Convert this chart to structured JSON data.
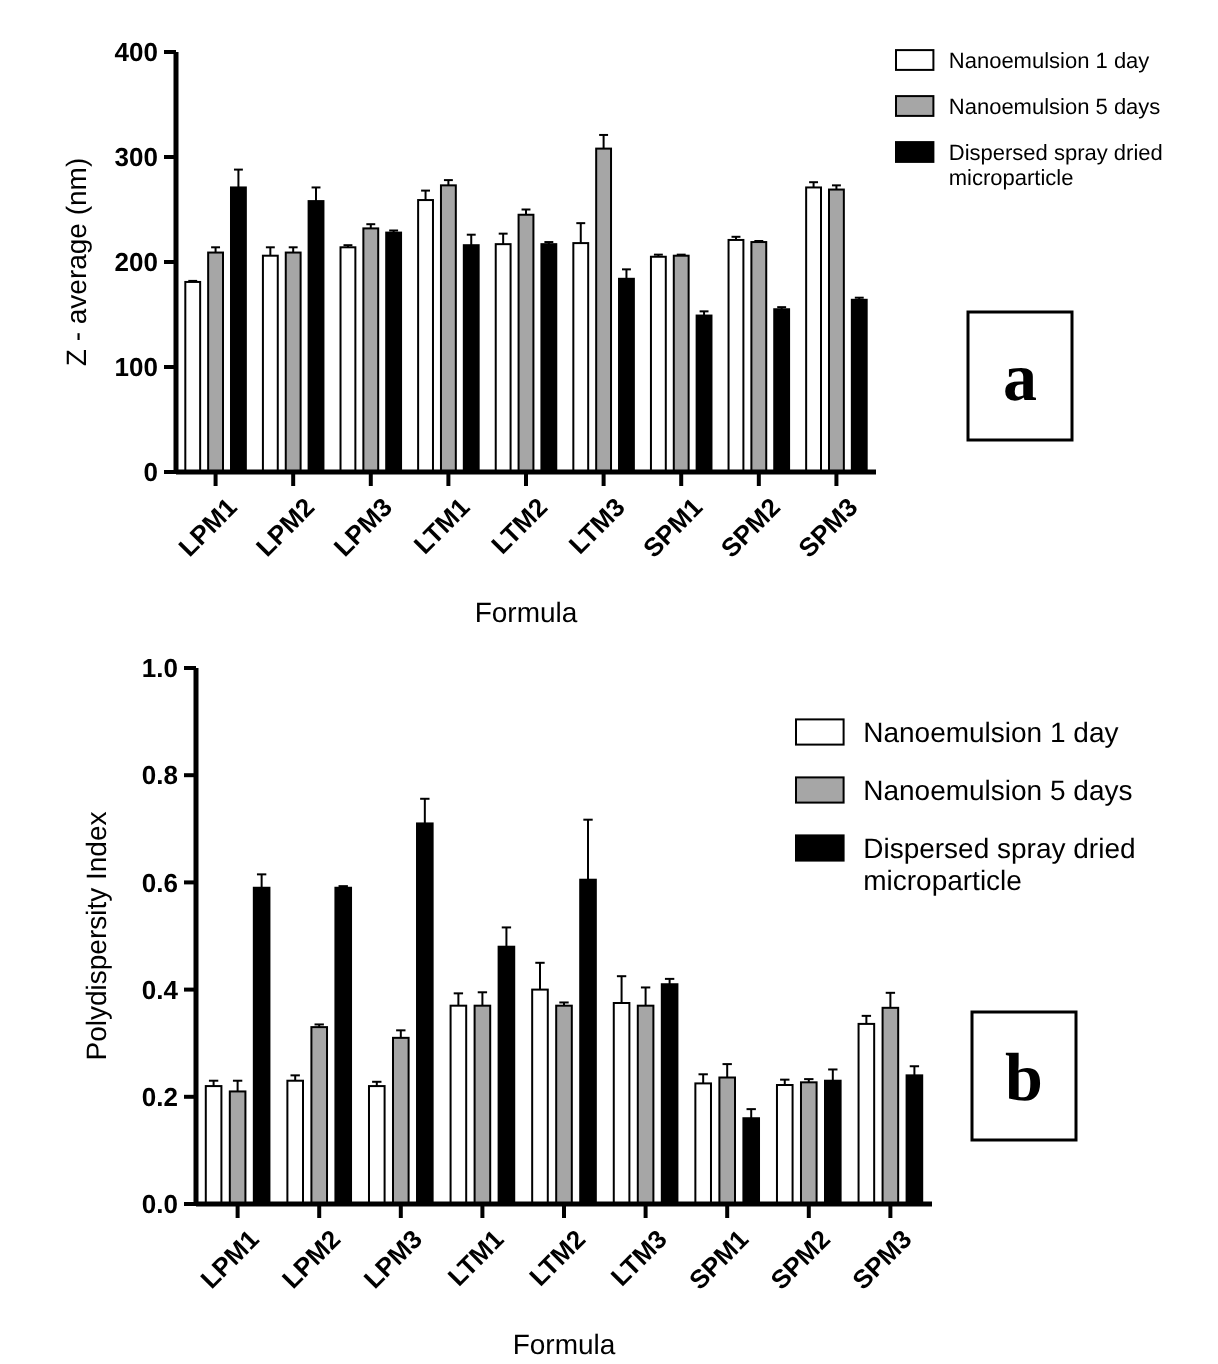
{
  "chart_data": [
    {
      "type": "bar",
      "xlabel": "Formula",
      "ylabel": "Z - average (nm)",
      "categories": [
        "LPM1",
        "LPM2",
        "LPM3",
        "LTM1",
        "LTM2",
        "LTM3",
        "SPM1",
        "SPM2",
        "SPM3"
      ],
      "series": [
        {
          "name": "Nanoemulsion 1 day",
          "color": "#ffffff",
          "values": [
            181,
            206,
            214,
            259,
            217,
            218,
            205,
            221,
            271
          ],
          "errors": [
            1,
            8,
            2,
            9,
            10,
            19,
            2,
            3,
            5
          ]
        },
        {
          "name": "Nanoemulsion 5 days",
          "color": "#a6a6a6",
          "values": [
            209,
            209,
            232,
            273,
            245,
            308,
            206,
            219,
            269
          ],
          "errors": [
            5,
            5,
            4,
            5,
            5,
            13,
            1,
            1,
            4
          ]
        },
        {
          "name": "Dispersed spray dried microparticle",
          "color": "#000000",
          "values": [
            271,
            258,
            228,
            216,
            217,
            184,
            149,
            155,
            164
          ],
          "errors": [
            17,
            13,
            2,
            10,
            2,
            9,
            4,
            2,
            2
          ]
        }
      ],
      "ylim": [
        0,
        400
      ],
      "yticks": [
        0,
        100,
        200,
        300,
        400
      ],
      "grid": false,
      "legend": "top right",
      "annotations": [
        "a"
      ]
    },
    {
      "type": "bar",
      "xlabel": "Formula",
      "ylabel": "Polydispersity Index",
      "categories": [
        "LPM1",
        "LPM2",
        "LPM3",
        "LTM1",
        "LTM2",
        "LTM3",
        "SPM1",
        "SPM2",
        "SPM3"
      ],
      "series": [
        {
          "name": "Nanoemulsion 1 day",
          "color": "#ffffff",
          "values": [
            0.22,
            0.23,
            0.22,
            0.37,
            0.4,
            0.375,
            0.225,
            0.222,
            0.336
          ],
          "errors": [
            0.01,
            0.01,
            0.008,
            0.023,
            0.05,
            0.05,
            0.017,
            0.01,
            0.015
          ]
        },
        {
          "name": "Nanoemulsion 5 days",
          "color": "#a6a6a6",
          "values": [
            0.21,
            0.33,
            0.31,
            0.37,
            0.37,
            0.37,
            0.236,
            0.227,
            0.366
          ],
          "errors": [
            0.02,
            0.005,
            0.014,
            0.025,
            0.006,
            0.034,
            0.025,
            0.006,
            0.028
          ]
        },
        {
          "name": "Dispersed spray dried microparticle",
          "color": "#000000",
          "values": [
            0.59,
            0.59,
            0.71,
            0.48,
            0.605,
            0.41,
            0.16,
            0.23,
            0.24
          ],
          "errors": [
            0.025,
            0.003,
            0.046,
            0.036,
            0.112,
            0.01,
            0.017,
            0.021,
            0.017
          ]
        }
      ],
      "ylim": [
        0,
        1
      ],
      "yticks": [
        {
          "value": 0,
          "label": "0.0"
        },
        {
          "value": 0.2,
          "label": "0.2"
        },
        {
          "value": 0.4,
          "label": "0.4"
        },
        {
          "value": 0.6,
          "label": "0.6"
        },
        {
          "value": 0.8,
          "label": "0.8"
        },
        {
          "value": 1,
          "label": "1.0"
        }
      ],
      "grid": false,
      "legend": "top right",
      "annotations": [
        "b"
      ]
    }
  ]
}
